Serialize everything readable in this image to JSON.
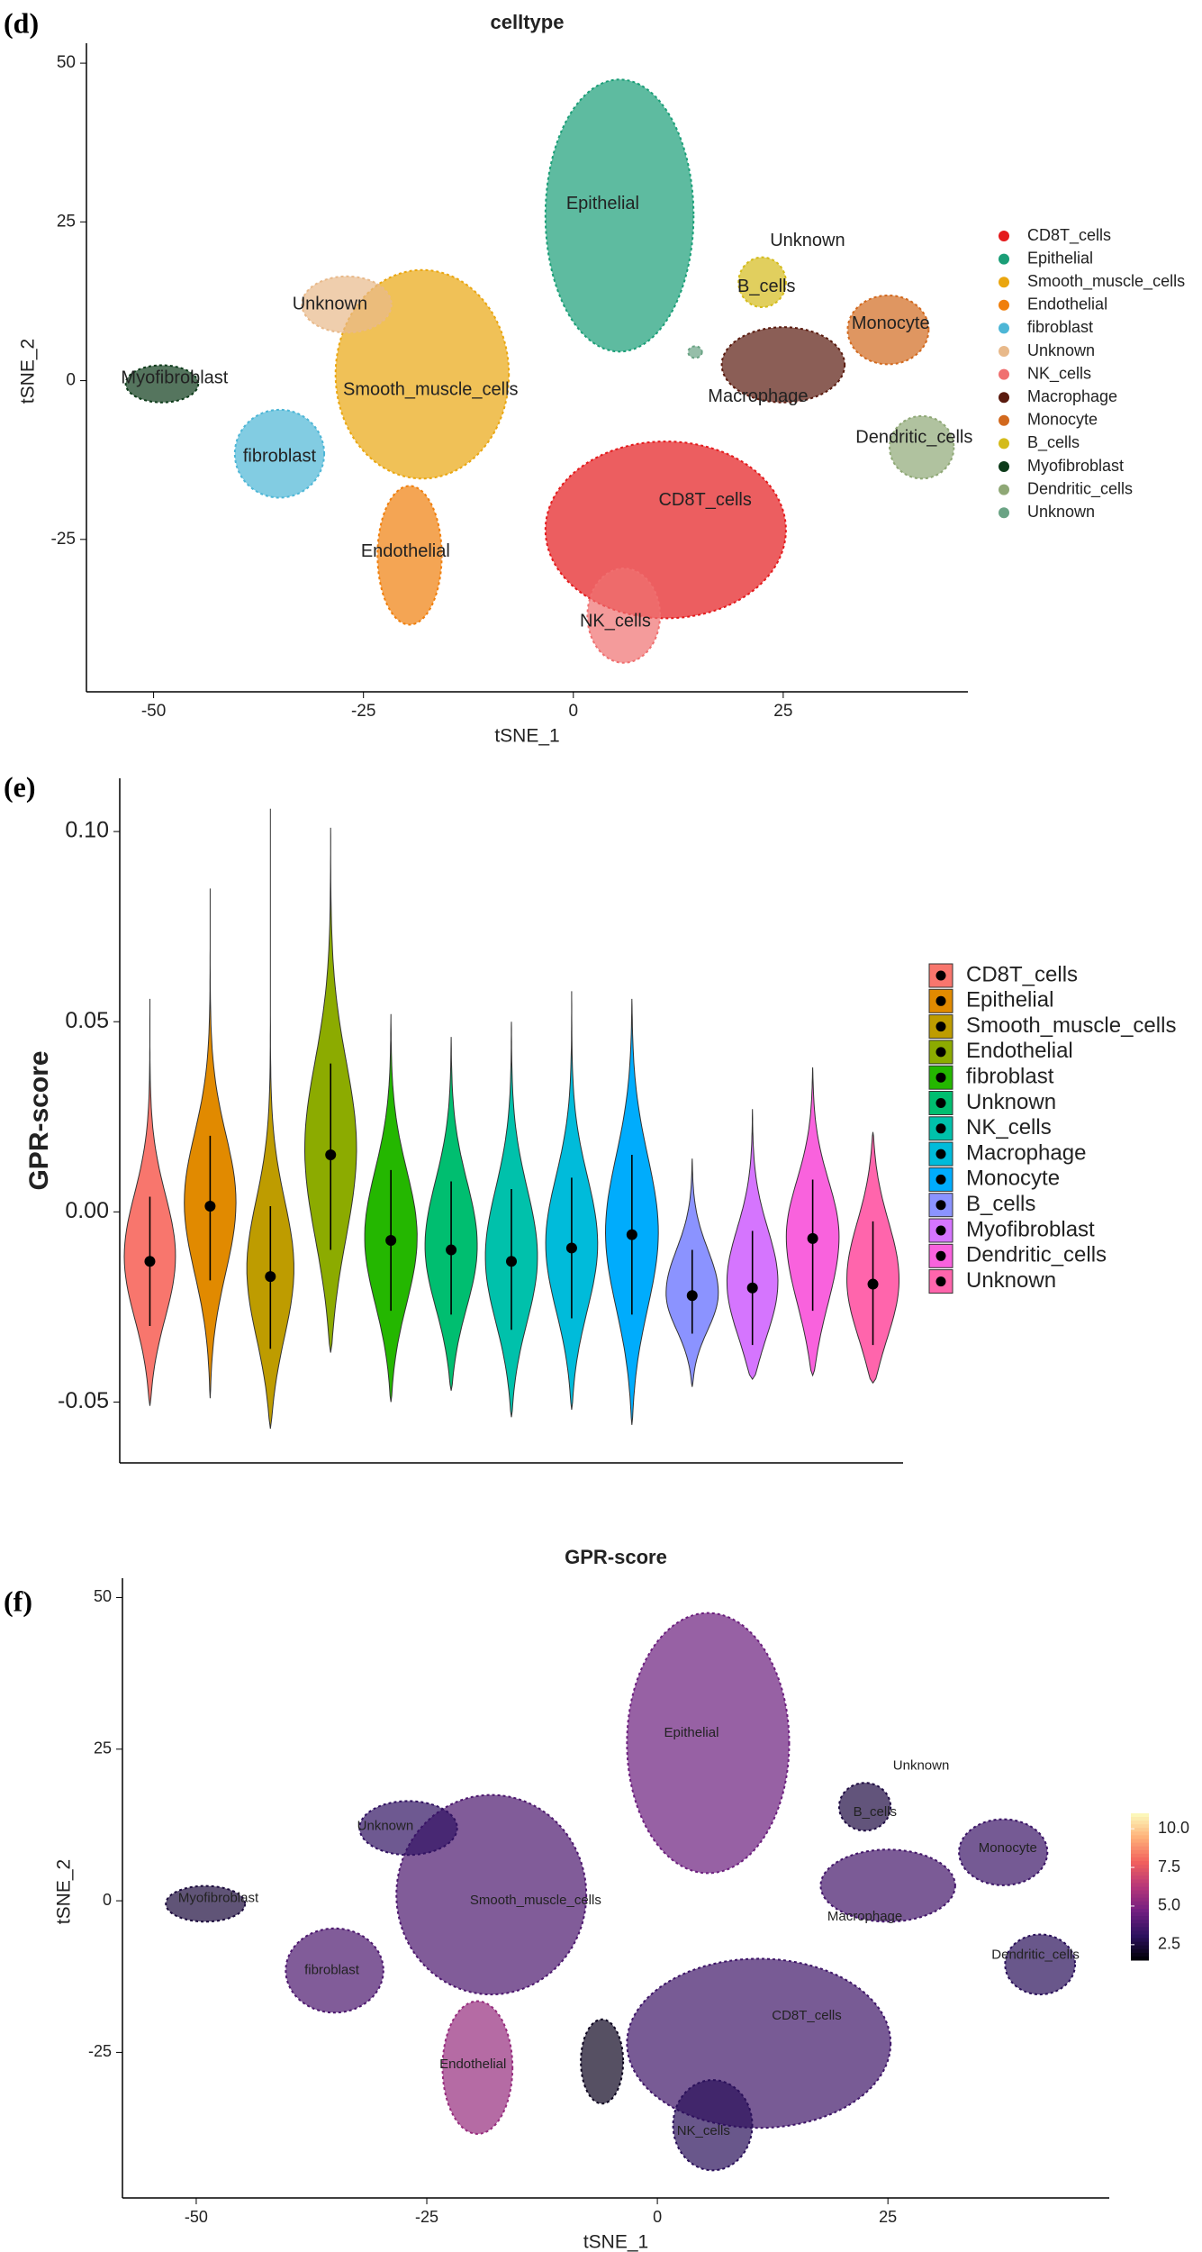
{
  "chart_data": [
    {
      "type": "scatter",
      "panel": "(d)",
      "title": "celltype",
      "xlabel": "tSNE_1",
      "ylabel": "tSNE_2",
      "xlim": [
        -58,
        47
      ],
      "ylim": [
        -49,
        52
      ],
      "xticks": [
        -50,
        -25,
        0,
        25
      ],
      "yticks": [
        -25,
        0,
        25,
        50
      ],
      "series": [
        {
          "name": "CD8T_cells",
          "color": "#e41a1c",
          "x": [
            -3,
            25
          ],
          "y": [
            -37,
            -10
          ]
        },
        {
          "name": "Epithelial",
          "color": "#1a9e77",
          "x": [
            -3,
            14
          ],
          "y": [
            5,
            47
          ]
        },
        {
          "name": "Smooth_muscle_cells",
          "color": "#eaa60f",
          "x": [
            -28,
            -8
          ],
          "y": [
            -15,
            17
          ]
        },
        {
          "name": "Endothelial",
          "color": "#f07f0c",
          "x": [
            -23,
            -16
          ],
          "y": [
            -38,
            -17
          ]
        },
        {
          "name": "fibroblast",
          "color": "#4db6d6",
          "x": [
            -40,
            -30
          ],
          "y": [
            -18,
            -5
          ]
        },
        {
          "name": "Unknown",
          "color": "#e8b98a",
          "x": [
            -32,
            -22
          ],
          "y": [
            8,
            16
          ]
        },
        {
          "name": "NK_cells",
          "color": "#f07070",
          "x": [
            2,
            10
          ],
          "y": [
            -44,
            -30
          ]
        },
        {
          "name": "Macrophage",
          "color": "#5a1a0e",
          "x": [
            18,
            32
          ],
          "y": [
            -3,
            8
          ]
        },
        {
          "name": "Monocyte",
          "color": "#d2691e",
          "x": [
            33,
            42
          ],
          "y": [
            3,
            13
          ]
        },
        {
          "name": "B_cells",
          "color": "#d4bb1a",
          "x": [
            20,
            25
          ],
          "y": [
            12,
            19
          ]
        },
        {
          "name": "Myofibroblast",
          "color": "#0d3b1a",
          "x": [
            -53,
            -45
          ],
          "y": [
            -3,
            2
          ]
        },
        {
          "name": "Dendritic_cells",
          "color": "#8fa876",
          "x": [
            38,
            45
          ],
          "y": [
            -15,
            -6
          ]
        },
        {
          "name": "Unknown",
          "color": "#6aa384",
          "x": [
            14,
            15
          ],
          "y": [
            4,
            5
          ]
        }
      ],
      "annotations": [
        {
          "text": "Epithelial",
          "x": 3.5,
          "y": 27.8
        },
        {
          "text": "Unknown",
          "x": 27.9,
          "y": 22
        },
        {
          "text": "B_cells",
          "x": 23,
          "y": 14.7
        },
        {
          "text": "Unknown",
          "x": -29,
          "y": 12
        },
        {
          "text": "Monocyte",
          "x": 37.8,
          "y": 8.9
        },
        {
          "text": "Myofibroblast",
          "x": -47.5,
          "y": 0.3
        },
        {
          "text": "Smooth_muscle_cells",
          "x": -17,
          "y": -1.5
        },
        {
          "text": "Macrophage",
          "x": 22,
          "y": -2.6
        },
        {
          "text": "Dendritic_cells",
          "x": 40.6,
          "y": -9
        },
        {
          "text": "fibroblast",
          "x": -35,
          "y": -12
        },
        {
          "text": "CD8T_cells",
          "x": 15.7,
          "y": -18.9
        },
        {
          "text": "Endothelial",
          "x": -20,
          "y": -27
        },
        {
          "text": "NK_cells",
          "x": 5,
          "y": -38
        }
      ]
    },
    {
      "type": "violin",
      "panel": "(e)",
      "ylabel": "GPR-score",
      "ylim": [
        -0.066,
        0.114
      ],
      "yticks": [
        {
          "value": -0.05,
          "label": "-0.05"
        },
        {
          "value": 0,
          "label": "0.00"
        },
        {
          "value": 0.05,
          "label": "0.05"
        },
        {
          "value": 0.1,
          "label": "0.10"
        }
      ],
      "categories": [
        "CD8T_cells",
        "Epithelial",
        "Smooth_muscle_cells",
        "Endothelial",
        "fibroblast",
        "Unknown",
        "NK_cells",
        "Macrophage",
        "Monocyte",
        "B_cells",
        "Myofibroblast",
        "Dendritic_cells",
        "Unknown"
      ],
      "colors": [
        "#F8766D",
        "#E18A00",
        "#BE9C00",
        "#8CAB00",
        "#24B700",
        "#00BE70",
        "#00C1AB",
        "#00BBDA",
        "#00ACFC",
        "#8B93FF",
        "#D575FE",
        "#F962DD",
        "#FF65AC"
      ],
      "values": [
        -0.013,
        0.0015,
        -0.017,
        0.015,
        -0.0075,
        -0.01,
        -0.013,
        -0.0095,
        -0.006,
        -0.022,
        -0.02,
        -0.007,
        -0.019
      ],
      "lower": [
        -0.03,
        -0.018,
        -0.036,
        -0.01,
        -0.026,
        -0.027,
        -0.031,
        -0.028,
        -0.027,
        -0.032,
        -0.035,
        -0.026,
        -0.035
      ],
      "upper": [
        0.004,
        0.02,
        0.0015,
        0.039,
        0.011,
        0.008,
        0.006,
        0.009,
        0.015,
        -0.01,
        -0.005,
        0.0085,
        -0.0025
      ],
      "min": [
        -0.051,
        -0.049,
        -0.057,
        -0.037,
        -0.05,
        -0.047,
        -0.054,
        -0.052,
        -0.056,
        -0.046,
        -0.044,
        -0.043,
        -0.045
      ],
      "max": [
        0.056,
        0.085,
        0.106,
        0.101,
        0.052,
        0.046,
        0.05,
        0.058,
        0.056,
        0.014,
        0.027,
        0.038,
        0.021
      ]
    },
    {
      "type": "scatter",
      "panel": "(f)",
      "title": "GPR-score",
      "xlabel": "tSNE_1",
      "ylabel": "tSNE_2",
      "xlim": [
        -58,
        49
      ],
      "ylim": [
        -49,
        52
      ],
      "xticks": [
        -50,
        -25,
        0,
        25
      ],
      "yticks": [
        -25,
        0,
        25,
        50
      ],
      "colorbar": {
        "lim": [
          1.5,
          11
        ],
        "ticks": [
          {
            "value": 2.5,
            "label": "2.5"
          },
          {
            "value": 5,
            "label": "5.0"
          },
          {
            "value": 7.5,
            "label": "7.5"
          },
          {
            "value": 10,
            "label": "10.0"
          }
        ]
      },
      "clusters": [
        {
          "x": [
            -3,
            25
          ],
          "y": [
            -37,
            -10
          ],
          "value": 3.5
        },
        {
          "x": [
            -3,
            14
          ],
          "y": [
            5,
            47
          ],
          "value": 4.5
        },
        {
          "x": [
            -28,
            -8
          ],
          "y": [
            -15,
            17
          ],
          "value": 3.8
        },
        {
          "x": [
            -23,
            -16
          ],
          "y": [
            -38,
            -17
          ],
          "value": 5.5
        },
        {
          "x": [
            -40,
            -30
          ],
          "y": [
            -18,
            -5
          ],
          "value": 3.8
        },
        {
          "x": [
            -32,
            -22
          ],
          "y": [
            8,
            16
          ],
          "value": 3.2
        },
        {
          "x": [
            2,
            10
          ],
          "y": [
            -44,
            -30
          ],
          "value": 3
        },
        {
          "x": [
            18,
            32
          ],
          "y": [
            -3,
            8
          ],
          "value": 3.6
        },
        {
          "x": [
            33,
            42
          ],
          "y": [
            3,
            13
          ],
          "value": 3.4
        },
        {
          "x": [
            20,
            25
          ],
          "y": [
            12,
            19
          ],
          "value": 2.6
        },
        {
          "x": [
            -53,
            -45
          ],
          "y": [
            -3,
            2
          ],
          "value": 2.5
        },
        {
          "x": [
            38,
            45
          ],
          "y": [
            -15,
            -6
          ],
          "value": 3
        },
        {
          "x": [
            -8,
            -4
          ],
          "y": [
            -33,
            -20
          ],
          "value": 2
        }
      ],
      "annotations": [
        {
          "text": "Epithelial",
          "x": 3.7,
          "y": 27.6
        },
        {
          "text": "Unknown",
          "x": 28.6,
          "y": 22.2
        },
        {
          "text": "B_cells",
          "x": 23.6,
          "y": 14.6
        },
        {
          "text": "Unknown",
          "x": -29.5,
          "y": 12.3
        },
        {
          "text": "Monocyte",
          "x": 38,
          "y": 8.6
        },
        {
          "text": "Myofibroblast",
          "x": -47.6,
          "y": 0.4
        },
        {
          "text": "Smooth_muscle_cells",
          "x": -13.2,
          "y": 0
        },
        {
          "text": "Macrophage",
          "x": 22.5,
          "y": -2.7
        },
        {
          "text": "Dendritic_cells",
          "x": 41,
          "y": -9
        },
        {
          "text": "fibroblast",
          "x": -35.3,
          "y": -11.5
        },
        {
          "text": "CD8T_cells",
          "x": 16.2,
          "y": -19
        },
        {
          "text": "Endothelial",
          "x": -20,
          "y": -27
        },
        {
          "text": "NK_cells",
          "x": 5,
          "y": -38
        }
      ]
    }
  ]
}
